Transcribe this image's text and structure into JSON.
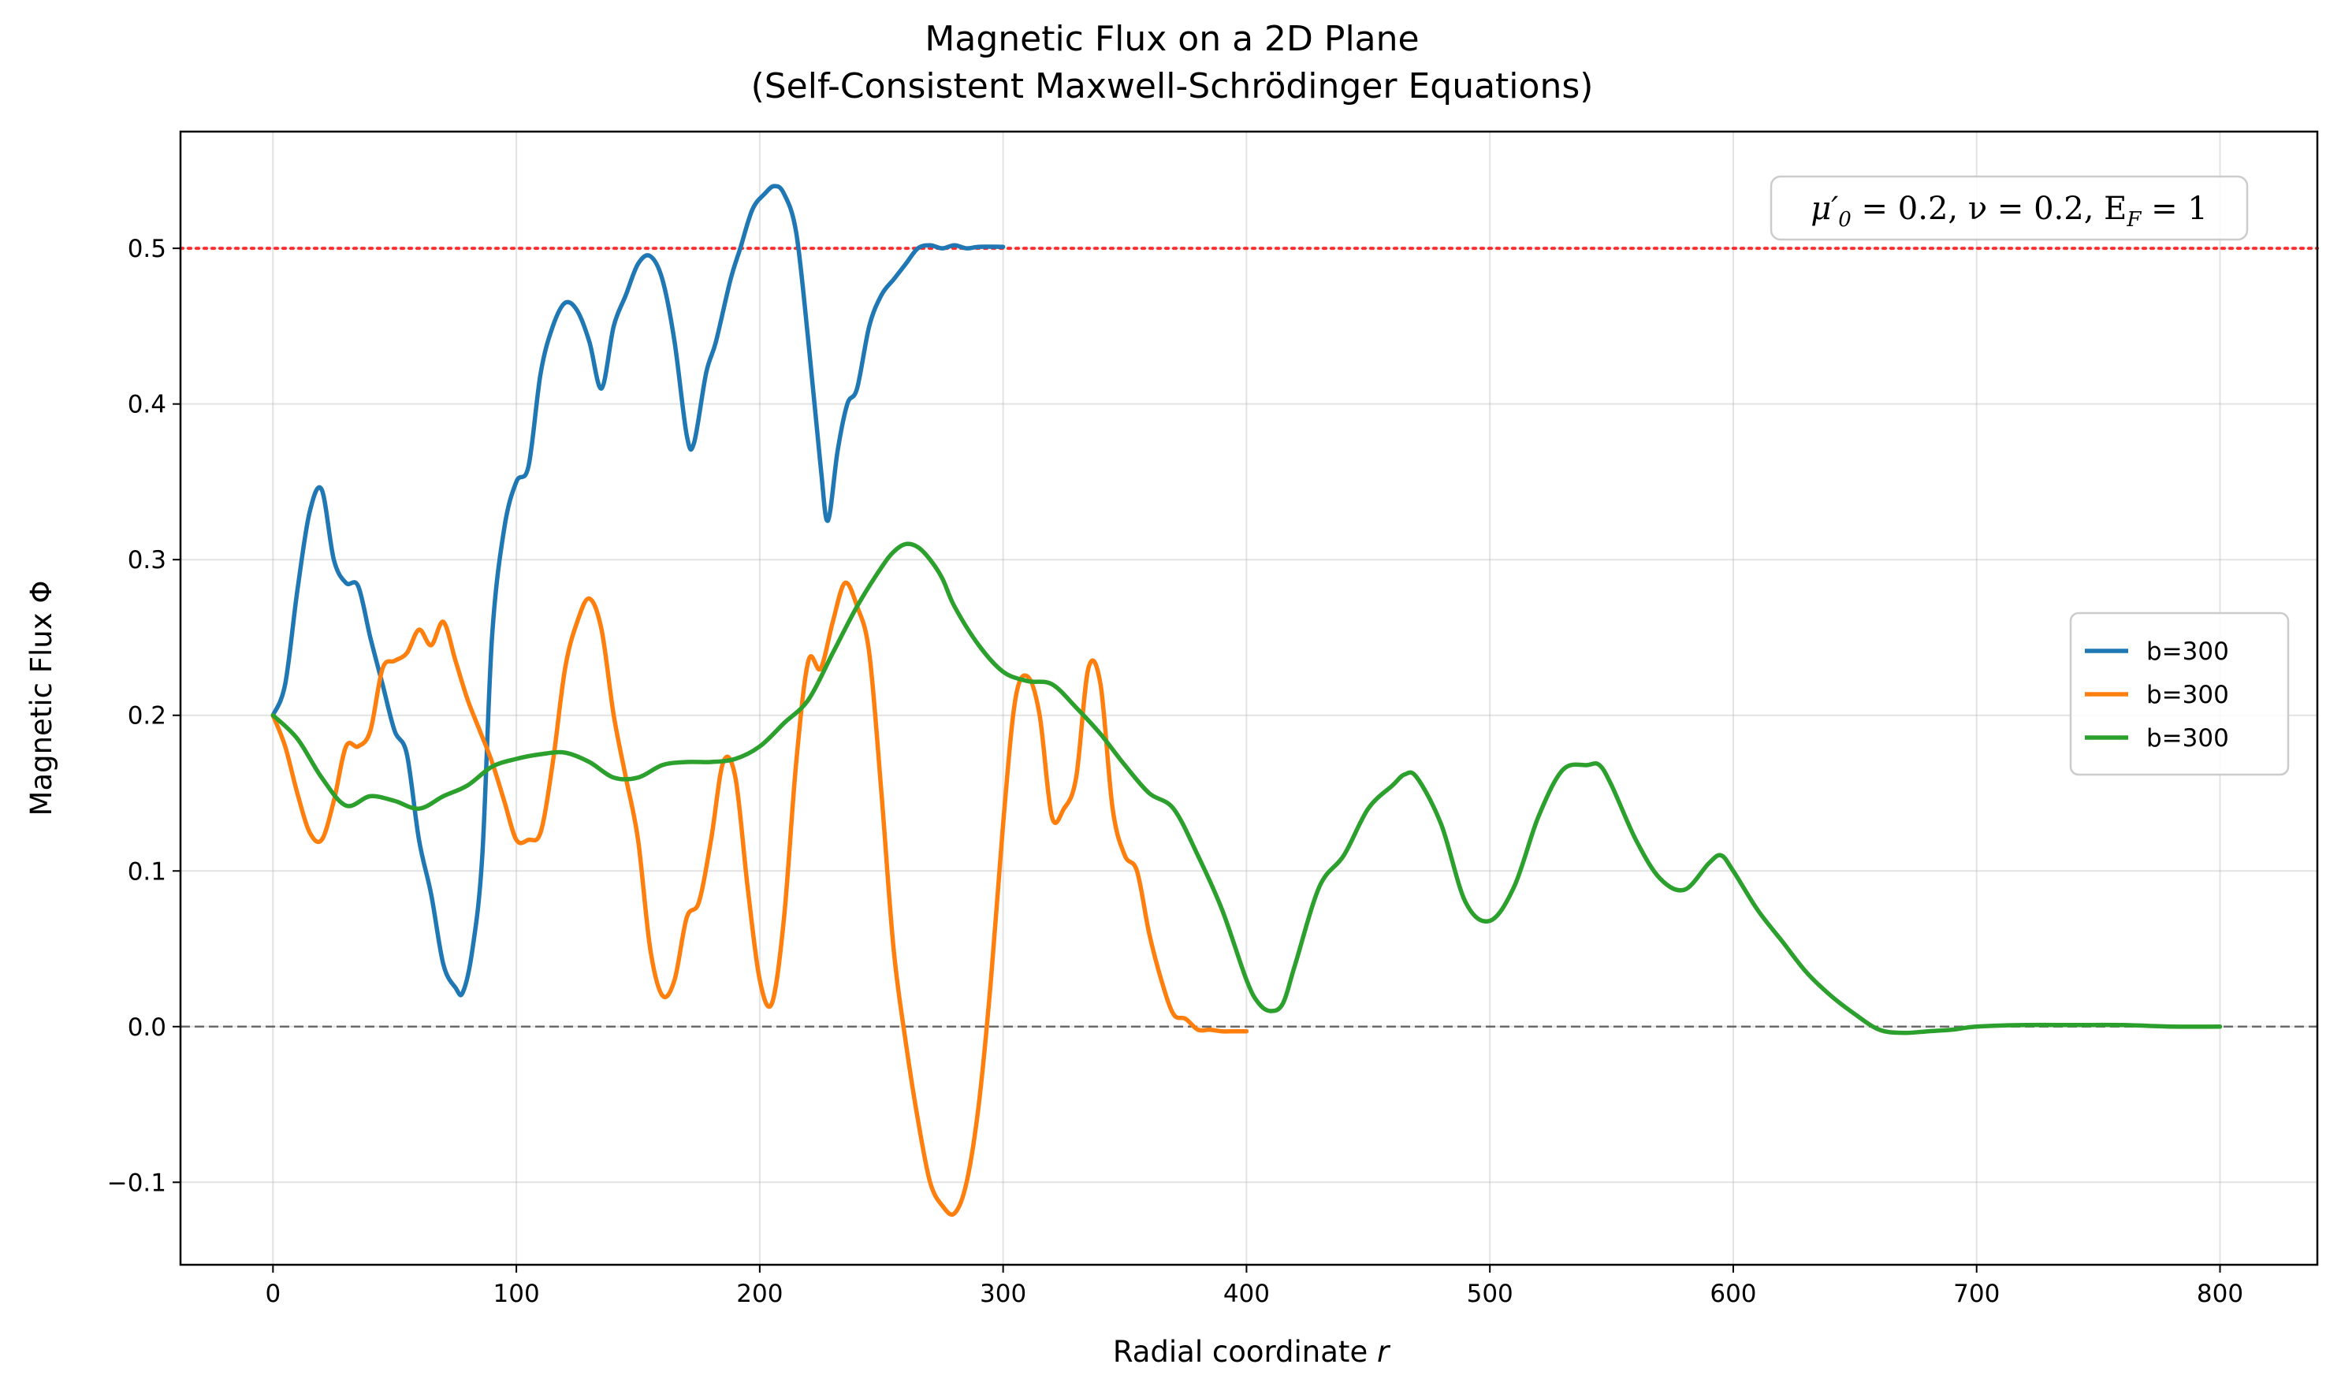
{
  "chart_data": {
    "type": "line",
    "title": "Magnetic Flux on a 2D Plane",
    "subtitle": "(Self-Consistent Maxwell-Schrödinger Equations)",
    "xlabel_main": "Radial coordinate ",
    "xlabel_var": "r",
    "ylabel": "Magnetic Flux Φ",
    "xlim": [
      -38,
      840
    ],
    "ylim": [
      -0.153,
      0.575
    ],
    "xticks": [
      0,
      100,
      200,
      300,
      400,
      500,
      600,
      700,
      800
    ],
    "yticks": [
      -0.1,
      0.0,
      0.1,
      0.2,
      0.3,
      0.4,
      0.5
    ],
    "ytick_labels": [
      "−0.1",
      "0.0",
      "0.1",
      "0.2",
      "0.3",
      "0.4",
      "0.5"
    ],
    "grid": true,
    "legend_position": "center-right",
    "annotation": {
      "mu": "μ′",
      "mu_sub": "0",
      "rest1": " = 0.2, ν = 0.2, E",
      "ef_sub": "F",
      "rest2": " = 1"
    },
    "reference_lines": [
      {
        "y": 0.5,
        "color": "#ff0000",
        "style": "dotted"
      },
      {
        "y": 0.0,
        "color": "#555555",
        "style": "dashed"
      }
    ],
    "series": [
      {
        "name": "b=300",
        "color": "#1f77b4",
        "x": [
          0,
          5,
          10,
          15,
          20,
          25,
          30,
          35,
          40,
          45,
          50,
          55,
          60,
          65,
          70,
          75,
          78,
          82,
          86,
          90,
          95,
          100,
          105,
          110,
          115,
          120,
          125,
          130,
          135,
          140,
          145,
          150,
          155,
          160,
          165,
          170,
          173,
          178,
          182,
          188,
          192,
          197,
          202,
          206,
          210,
          215,
          220,
          225,
          228,
          232,
          236,
          240,
          245,
          250,
          255,
          260,
          265,
          270,
          275,
          280,
          285,
          290,
          300
        ],
        "y": [
          0.2,
          0.22,
          0.28,
          0.33,
          0.345,
          0.3,
          0.285,
          0.283,
          0.25,
          0.22,
          0.19,
          0.175,
          0.12,
          0.085,
          0.04,
          0.025,
          0.022,
          0.05,
          0.11,
          0.25,
          0.32,
          0.35,
          0.36,
          0.42,
          0.45,
          0.465,
          0.46,
          0.44,
          0.41,
          0.45,
          0.47,
          0.49,
          0.495,
          0.48,
          0.44,
          0.38,
          0.375,
          0.42,
          0.44,
          0.48,
          0.5,
          0.525,
          0.535,
          0.54,
          0.535,
          0.51,
          0.44,
          0.36,
          0.325,
          0.37,
          0.4,
          0.41,
          0.45,
          0.47,
          0.48,
          0.49,
          0.5,
          0.502,
          0.5,
          0.502,
          0.5,
          0.501,
          0.501
        ]
      },
      {
        "name": "b=300",
        "color": "#ff7f0e",
        "x": [
          0,
          5,
          10,
          15,
          20,
          25,
          30,
          35,
          40,
          45,
          50,
          55,
          60,
          65,
          70,
          75,
          80,
          85,
          90,
          95,
          100,
          105,
          110,
          115,
          120,
          125,
          130,
          135,
          140,
          145,
          150,
          155,
          160,
          165,
          170,
          175,
          180,
          185,
          190,
          195,
          200,
          205,
          210,
          215,
          220,
          225,
          230,
          235,
          240,
          245,
          250,
          255,
          260,
          265,
          270,
          275,
          280,
          285,
          290,
          295,
          300,
          305,
          310,
          315,
          320,
          325,
          330,
          335,
          340,
          345,
          350,
          355,
          360,
          365,
          370,
          375,
          380,
          385,
          390,
          395,
          400
        ],
        "y": [
          0.2,
          0.18,
          0.15,
          0.125,
          0.12,
          0.145,
          0.18,
          0.18,
          0.19,
          0.23,
          0.235,
          0.24,
          0.255,
          0.245,
          0.26,
          0.235,
          0.21,
          0.19,
          0.17,
          0.145,
          0.12,
          0.12,
          0.125,
          0.17,
          0.23,
          0.26,
          0.275,
          0.255,
          0.2,
          0.16,
          0.12,
          0.05,
          0.02,
          0.03,
          0.07,
          0.08,
          0.12,
          0.17,
          0.16,
          0.09,
          0.03,
          0.015,
          0.07,
          0.17,
          0.235,
          0.23,
          0.26,
          0.285,
          0.27,
          0.24,
          0.15,
          0.05,
          -0.01,
          -0.06,
          -0.1,
          -0.115,
          -0.12,
          -0.1,
          -0.05,
          0.03,
          0.13,
          0.21,
          0.225,
          0.2,
          0.135,
          0.14,
          0.16,
          0.23,
          0.22,
          0.14,
          0.11,
          0.1,
          0.06,
          0.03,
          0.008,
          0.005,
          -0.002,
          -0.002,
          -0.003,
          -0.003,
          -0.003
        ]
      },
      {
        "name": "b=300",
        "color": "#2ca02c",
        "x": [
          0,
          10,
          20,
          30,
          40,
          50,
          60,
          70,
          80,
          90,
          100,
          110,
          120,
          130,
          140,
          150,
          160,
          170,
          180,
          190,
          200,
          210,
          220,
          230,
          240,
          250,
          255,
          260,
          265,
          270,
          275,
          280,
          290,
          300,
          310,
          320,
          330,
          340,
          350,
          360,
          370,
          380,
          390,
          400,
          405,
          410,
          415,
          420,
          430,
          440,
          450,
          460,
          465,
          470,
          480,
          490,
          500,
          510,
          520,
          530,
          540,
          545,
          550,
          560,
          570,
          580,
          590,
          595,
          600,
          610,
          620,
          630,
          640,
          650,
          660,
          670,
          680,
          690,
          700,
          720,
          740,
          760,
          780,
          800
        ],
        "y": [
          0.2,
          0.185,
          0.16,
          0.142,
          0.148,
          0.145,
          0.14,
          0.148,
          0.155,
          0.167,
          0.172,
          0.175,
          0.176,
          0.17,
          0.16,
          0.16,
          0.168,
          0.17,
          0.17,
          0.172,
          0.18,
          0.195,
          0.21,
          0.24,
          0.27,
          0.295,
          0.305,
          0.31,
          0.308,
          0.3,
          0.288,
          0.27,
          0.245,
          0.228,
          0.222,
          0.22,
          0.205,
          0.188,
          0.168,
          0.15,
          0.14,
          0.11,
          0.075,
          0.03,
          0.015,
          0.01,
          0.015,
          0.04,
          0.09,
          0.11,
          0.14,
          0.155,
          0.162,
          0.16,
          0.13,
          0.08,
          0.068,
          0.09,
          0.135,
          0.165,
          0.168,
          0.168,
          0.155,
          0.12,
          0.095,
          0.088,
          0.105,
          0.11,
          0.1,
          0.075,
          0.055,
          0.035,
          0.02,
          0.008,
          -0.002,
          -0.004,
          -0.003,
          -0.002,
          0.0,
          0.001,
          0.001,
          0.001,
          0.0,
          0.0
        ]
      }
    ]
  }
}
